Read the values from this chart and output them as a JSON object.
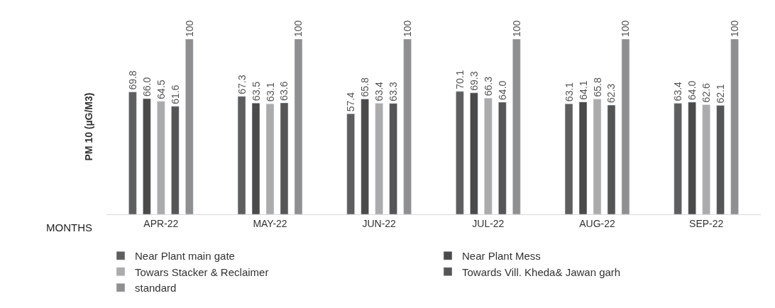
{
  "chart_data": {
    "type": "bar",
    "ylabel": "PM 10 (µG/M3)",
    "xlabel": "MONTHS",
    "categories": [
      "APR-22",
      "MAY-22",
      "JUN-22",
      "JUL-22",
      "AUG-22",
      "SEP-22"
    ],
    "series": [
      {
        "name": "Near Plant main gate",
        "color": "#5e5e5e",
        "values": [
          69.8,
          67.3,
          57.4,
          70.1,
          63.1,
          63.4
        ],
        "value_labels": [
          "69.8",
          "67.3",
          "57.4",
          "70.1",
          "63.1",
          "63.4"
        ]
      },
      {
        "name": "Near Plant Mess",
        "color": "#4a4a4a",
        "values": [
          66.0,
          63.5,
          65.8,
          69.3,
          64.1,
          64.0
        ],
        "value_labels": [
          "66.0",
          "63.5",
          "65.8",
          "69.3",
          "64.1",
          "64.0"
        ]
      },
      {
        "name": "Towars Stacker & Reclaimer",
        "color": "#ababab",
        "values": [
          64.5,
          63.1,
          63.4,
          66.3,
          65.8,
          62.6
        ],
        "value_labels": [
          "64.5",
          "63.1",
          "63.4",
          "66.3",
          "65.8",
          "62.6"
        ]
      },
      {
        "name": "Towards Vill. Kheda& Jawan garh",
        "color": "#555555",
        "values": [
          61.6,
          63.6,
          63.3,
          64.0,
          62.3,
          62.1
        ],
        "value_labels": [
          "61.6",
          "63.6",
          "63.3",
          "64.0",
          "62.3",
          "62.1"
        ]
      },
      {
        "name": "standard",
        "color": "#8f8f8f",
        "values": [
          100,
          100,
          100,
          100,
          100,
          100
        ],
        "value_labels": [
          "100",
          "100",
          "100",
          "100",
          "100",
          "100"
        ]
      }
    ],
    "ylim": [
      0,
      100
    ],
    "tick_labels": "x",
    "legend": "bottom"
  }
}
